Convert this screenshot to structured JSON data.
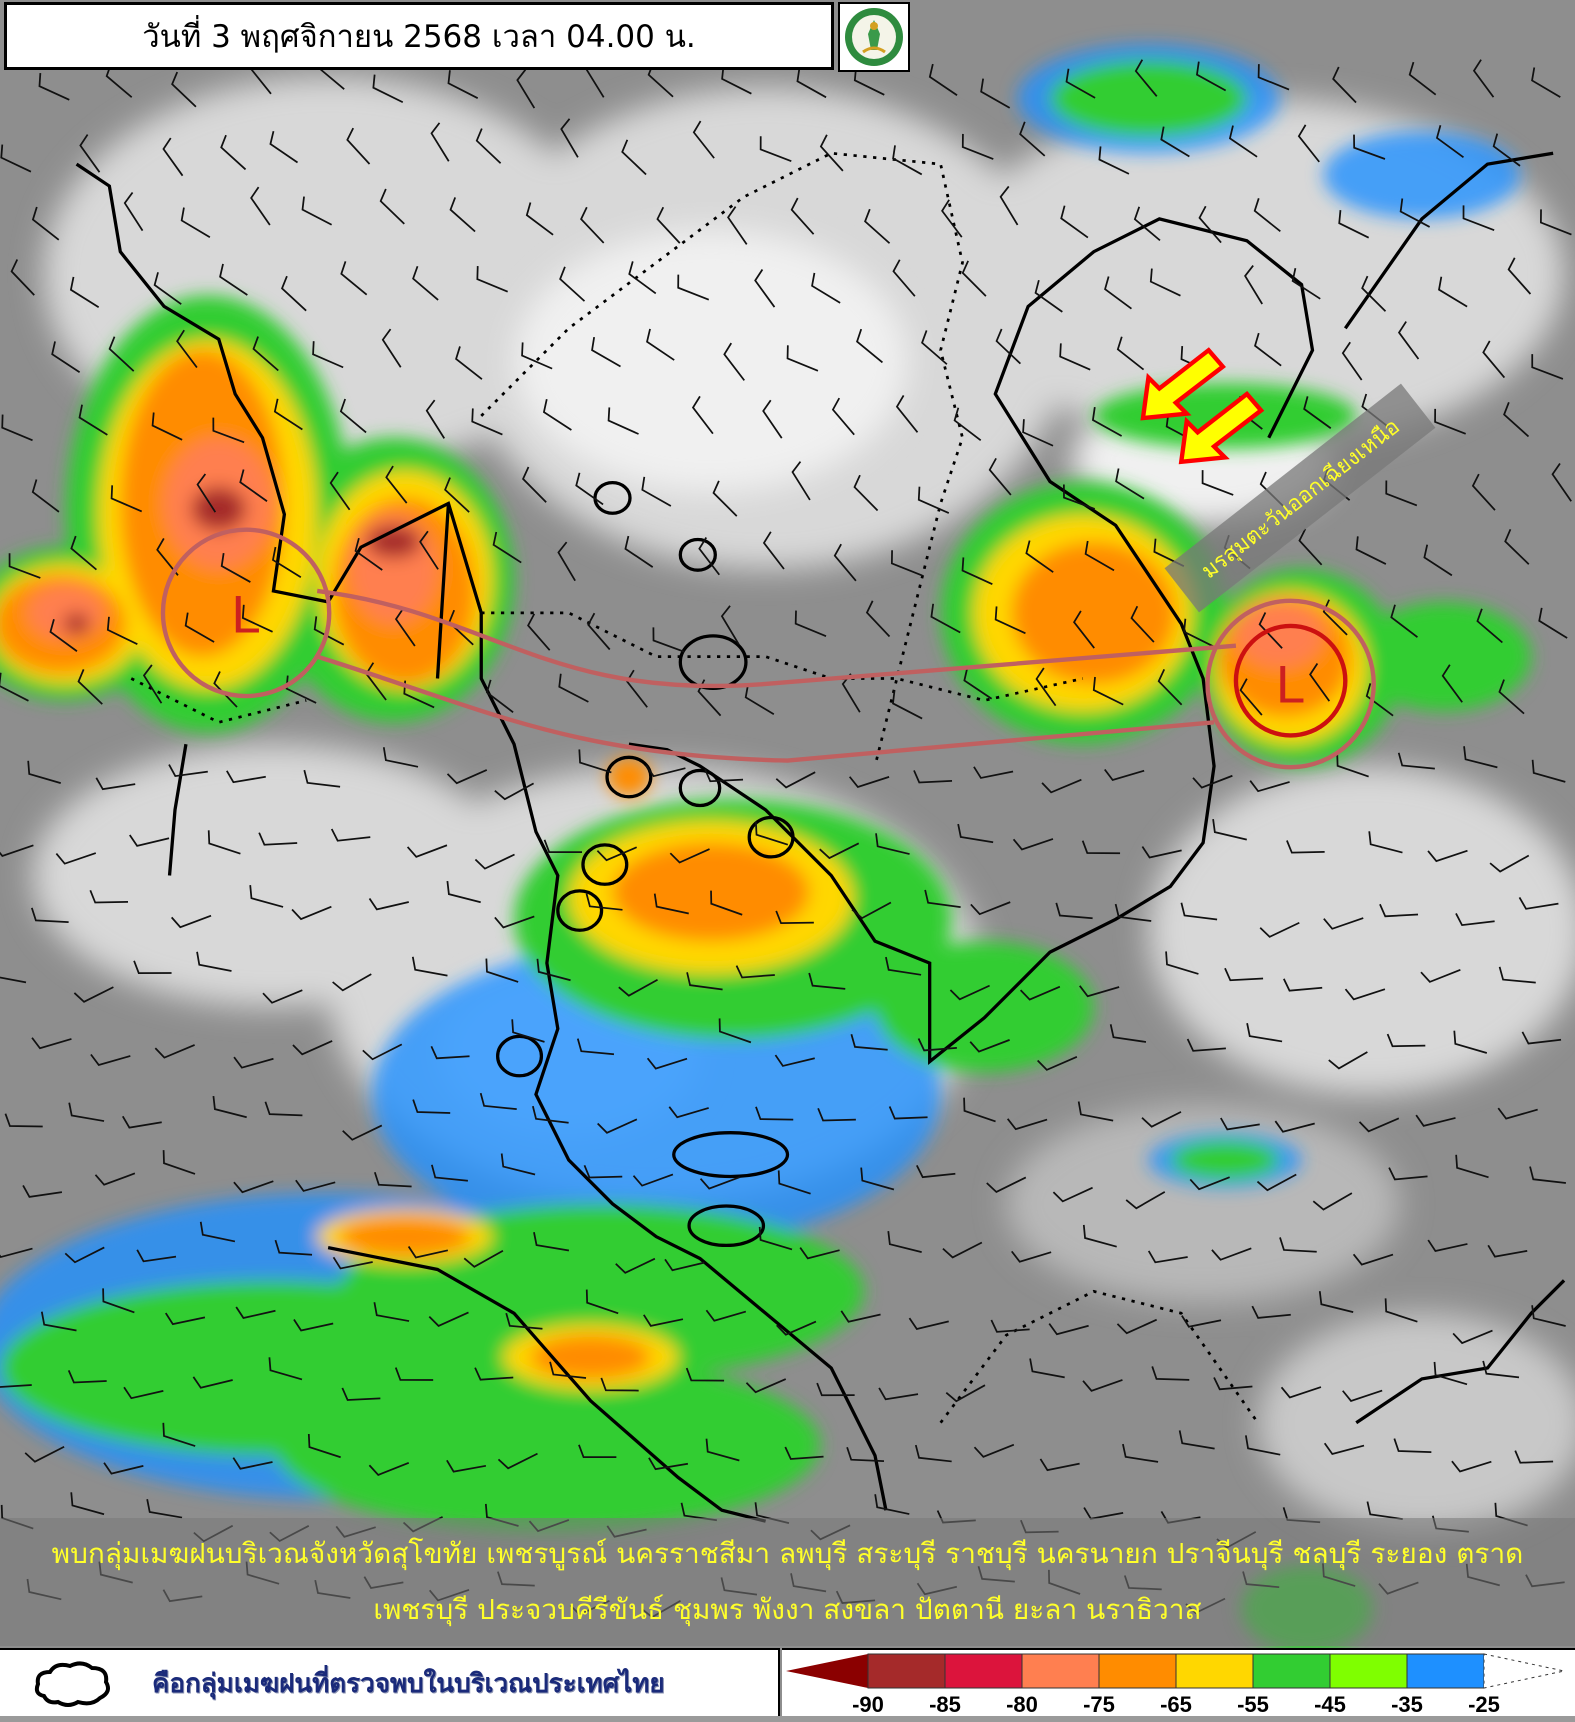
{
  "header": {
    "title": "วันที่ 3 พฤศจิกายน 2568 เวลา 04.00 น.",
    "logo_icon": "meteorological-department-logo"
  },
  "map": {
    "low_pressure_label": "L",
    "monsoon_label": "มรสุมตะวันออกเฉียงเหนือ",
    "arrow_color": "#ffff00",
    "arrow_outline": "#ff0000",
    "trough_color": "#c06060"
  },
  "summary": {
    "line1": "พบกลุ่มเมฆฝนบริเวณจังหวัดสุโขทัย เพชรบูรณ์ นครราชสีมา ลพบุรี สระบุรี ราชบุรี นครนายก ปราจีนบุรี ชลบุรี ระยอง ตราด",
    "line2": "เพชรบุรี ประจวบคีรีขันธ์ ชุมพร พังงา สงขลา ปัตตานี ยะลา นราธิวาส"
  },
  "legend": {
    "cloud_icon": "cloud-outline-icon",
    "cloud_label": "คือกลุ่มเมฆฝนที่ตรวจพบในบริเวณประเทศไทย",
    "colorbar": {
      "labels": [
        "-90",
        "-85",
        "-80",
        "-75",
        "-65",
        "-55",
        "-45",
        "-35",
        "-25"
      ],
      "colors": [
        "#8b0000",
        "#a52a2a",
        "#dc143c",
        "#ff7f50",
        "#ff8c00",
        "#ffd700",
        "#32cd32",
        "#7fff00",
        "#1e90ff",
        "#ffffff"
      ]
    }
  }
}
